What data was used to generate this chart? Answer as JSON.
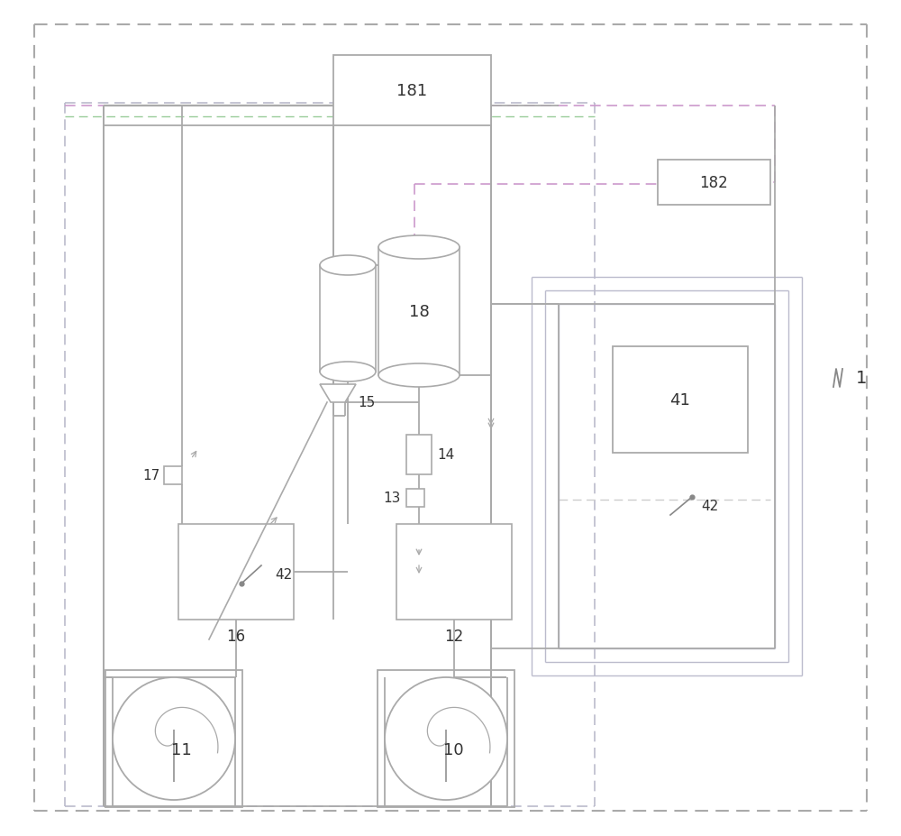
{
  "fig_width": 10.0,
  "fig_height": 9.28,
  "bg": "#ffffff",
  "c_gray": "#aaaaaa",
  "c_dark": "#777777",
  "c_purple": "#cc99cc",
  "c_green": "#99cc99",
  "c_line": "#aaaaaa",
  "c_dkline": "#888888"
}
